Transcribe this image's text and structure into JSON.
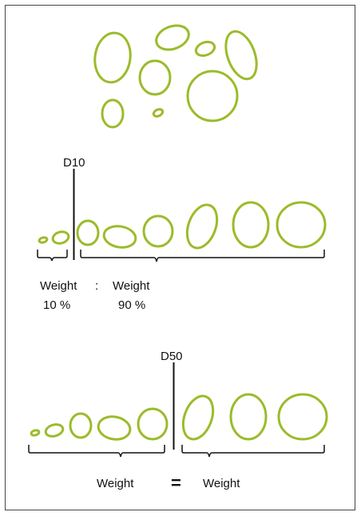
{
  "diagram": {
    "colors": {
      "particle": "#9bbb2b",
      "line": "#111111",
      "frame": "#444444"
    },
    "section_d10": {
      "marker_label": "D10",
      "left_label": "Weight",
      "left_percent": "10 %",
      "separator": ":",
      "right_label": "Weight",
      "right_percent": "90 %"
    },
    "section_d50": {
      "marker_label": "D50",
      "left_label": "Weight",
      "equals": "=",
      "right_label": "Weight"
    }
  }
}
